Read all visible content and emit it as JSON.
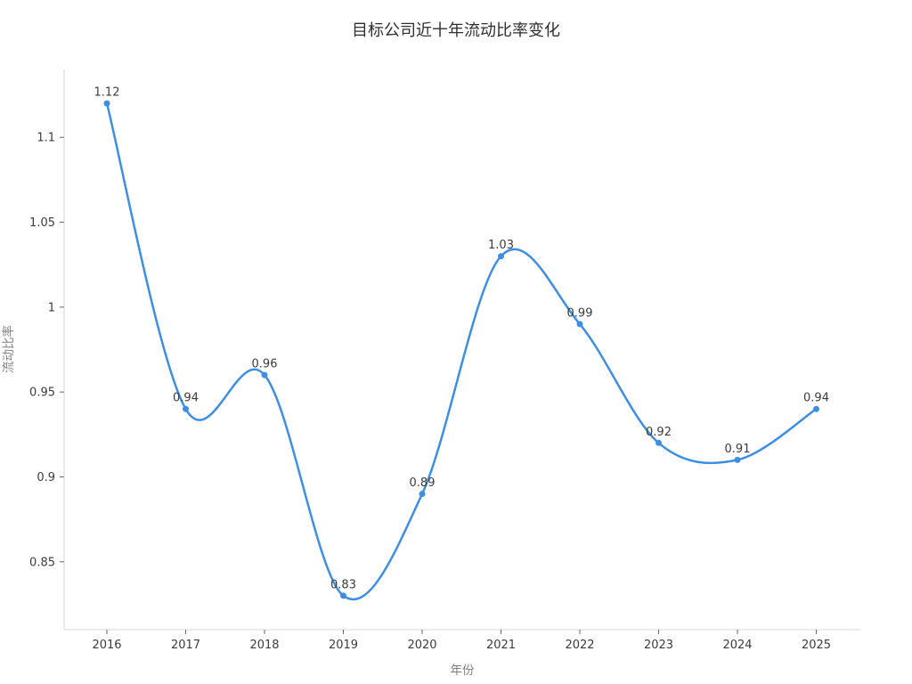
{
  "chart_data": {
    "type": "line",
    "title": "目标公司近十年流动比率变化",
    "xlabel": "年份",
    "ylabel": "流动比率",
    "categories": [
      "2016",
      "2017",
      "2018",
      "2019",
      "2020",
      "2021",
      "2022",
      "2023",
      "2024",
      "2025"
    ],
    "series": [
      {
        "name": "流动比率",
        "values": [
          1.12,
          0.94,
          0.96,
          0.83,
          0.89,
          1.03,
          0.99,
          0.92,
          0.91,
          0.94
        ],
        "point_labels": [
          "1.12",
          "0.94",
          "0.96",
          "0.83",
          "0.89",
          "1.03",
          "0.99",
          "0.92",
          "0.91",
          "0.94"
        ]
      }
    ],
    "yticks": [
      {
        "value": 1.1,
        "label": "1.1"
      },
      {
        "value": 1.05,
        "label": "1.05"
      },
      {
        "value": 1.0,
        "label": "1"
      },
      {
        "value": 0.95,
        "label": "0.95"
      },
      {
        "value": 0.9,
        "label": "0.9"
      },
      {
        "value": 0.85,
        "label": "0.85"
      }
    ],
    "ylim": [
      0.81,
      1.14
    ],
    "smooth": true,
    "grid": false,
    "legend_position": "none",
    "marker": "circle",
    "colors": {
      "line": "#3E8FE3",
      "marker": "#3E8FE3",
      "axis_line": "#d7d7d7",
      "tick_mark": "#666666",
      "tick_text": "#3b3b3b",
      "title_text": "#2f2f2f",
      "axis_title_text": "#808080",
      "background": "#ffffff"
    }
  }
}
